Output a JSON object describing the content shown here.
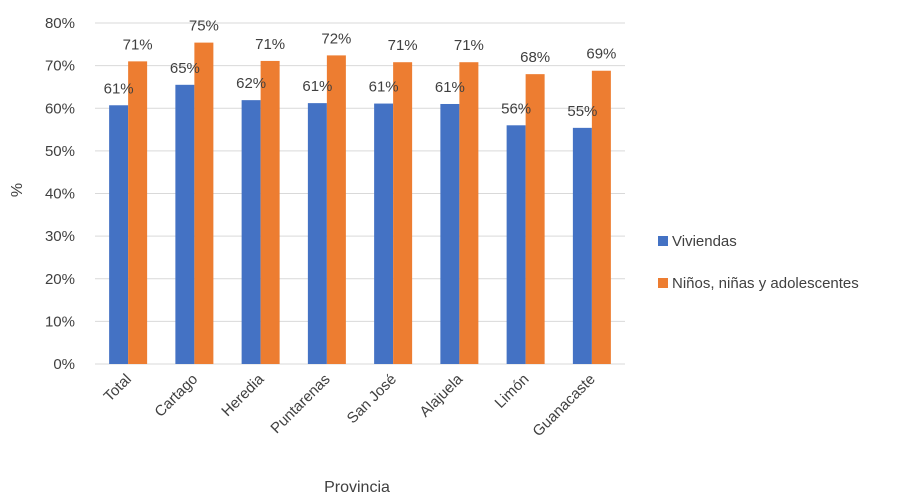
{
  "chart_data": {
    "type": "bar",
    "title": "",
    "xlabel": "Provincia",
    "ylabel": "%",
    "ylim": [
      0,
      80
    ],
    "yticks": [
      "0%",
      "10%",
      "20%",
      "30%",
      "40%",
      "50%",
      "60%",
      "70%",
      "80%"
    ],
    "ytick_values": [
      0,
      10,
      20,
      30,
      40,
      50,
      60,
      70,
      80
    ],
    "grid": true,
    "legend_position": "right",
    "categories": [
      "Total",
      "Cartago",
      "Heredia",
      "Puntarenas",
      "San José",
      "Alajuela",
      "Limón",
      "Guanacaste"
    ],
    "series": [
      {
        "name": "Viviendas",
        "color": "#4472C4",
        "values": [
          60.7,
          65.5,
          61.9,
          61.2,
          61.1,
          61.0,
          56.0,
          55.4
        ],
        "labels": [
          "61%",
          "65%",
          "62%",
          "61%",
          "61%",
          "61%",
          "56%",
          "55%"
        ]
      },
      {
        "name": "Niños, niñas y adolescentes",
        "color": "#ED7D31",
        "values": [
          71.0,
          75.4,
          71.1,
          72.4,
          70.8,
          70.8,
          68.0,
          68.8
        ],
        "labels": [
          "71%",
          "75%",
          "71%",
          "72%",
          "71%",
          "71%",
          "68%",
          "69%"
        ]
      }
    ]
  }
}
